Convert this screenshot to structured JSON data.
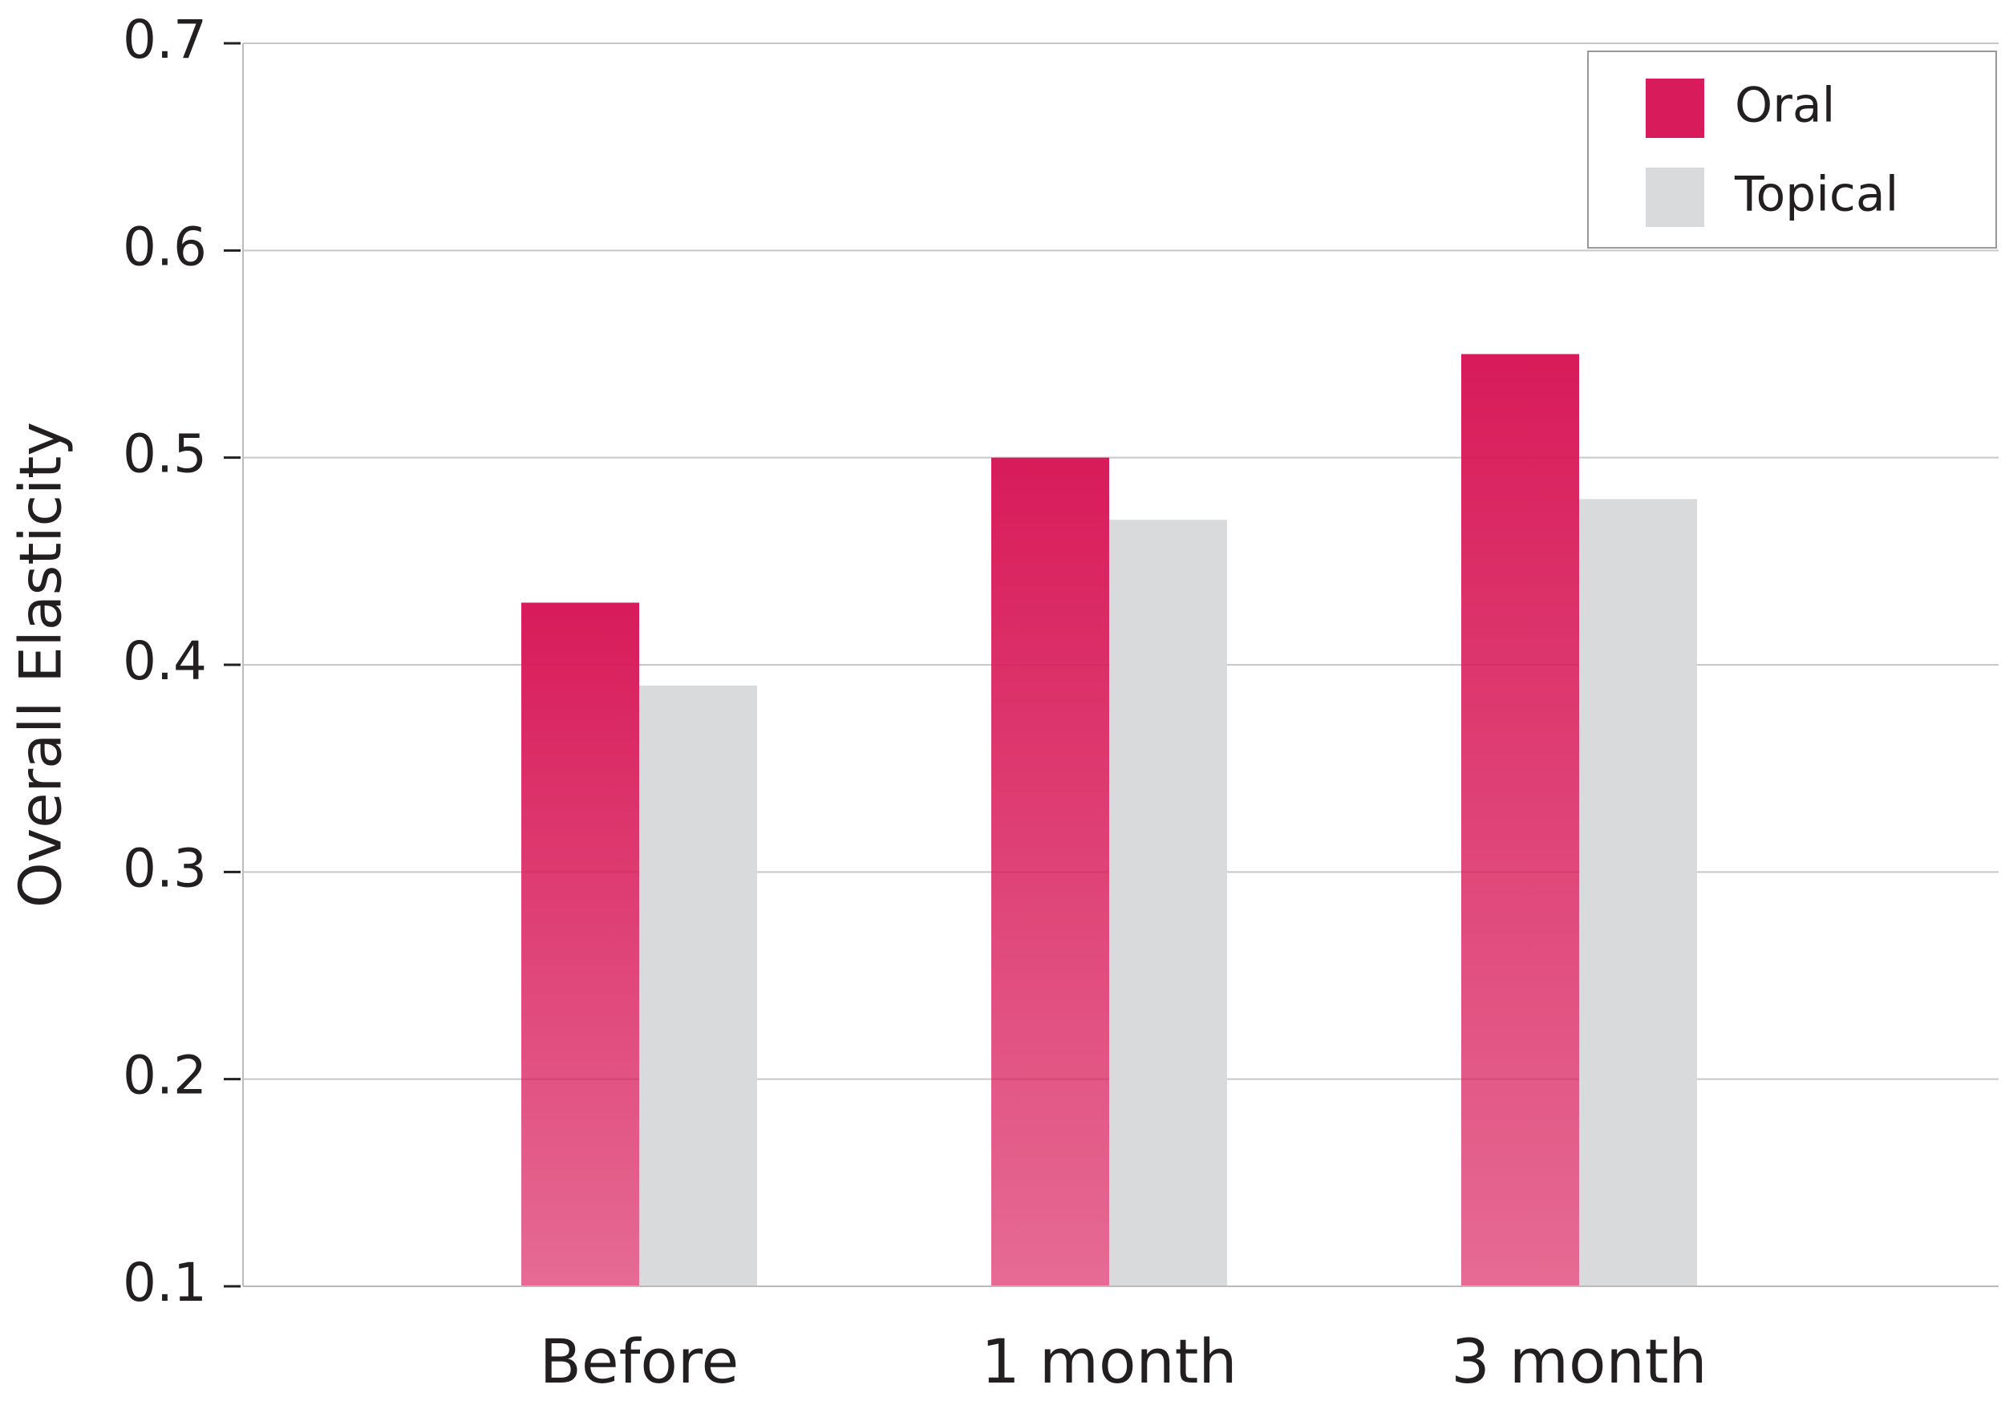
{
  "chart_data": {
    "type": "bar",
    "y_label": "Overall Elasticity",
    "categories": [
      "Before",
      "1 month",
      "3 month"
    ],
    "series": [
      {
        "name": "Oral",
        "color": "#d81b5a",
        "values": [
          0.43,
          0.5,
          0.55
        ]
      },
      {
        "name": "Topical",
        "color": "#d9dadc",
        "values": [
          0.39,
          0.47,
          0.48
        ]
      }
    ],
    "ylim": [
      0.1,
      0.7
    ],
    "yticks": [
      0.1,
      0.2,
      0.3,
      0.4,
      0.5,
      0.6,
      0.7
    ],
    "grid": true,
    "legend": "top-right"
  }
}
